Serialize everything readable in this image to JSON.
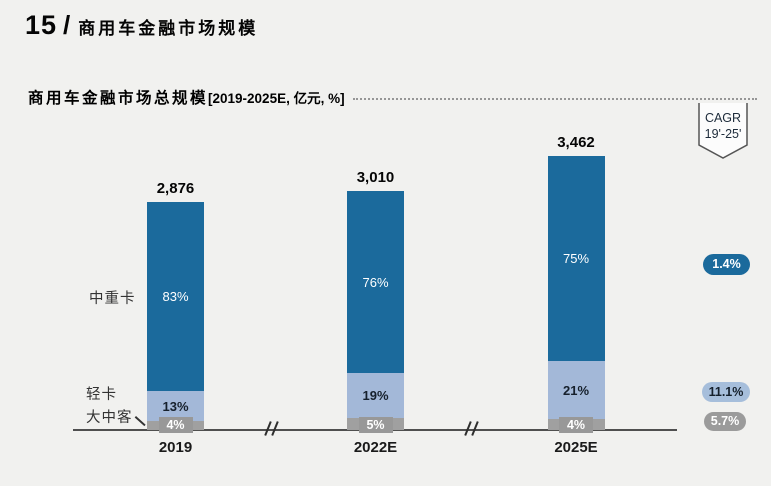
{
  "header": {
    "page_number": "15",
    "separator": "/",
    "title": "商用车金融市场规模"
  },
  "chart": {
    "subtitle_main": "商用车金融市场总规模",
    "subtitle_unit": "[2019-2025E, 亿元, %]",
    "cagr_line1": "CAGR",
    "cagr_line2": "19'-25'"
  },
  "chart_data": {
    "type": "bar",
    "stacked": true,
    "title": "商用车金融市场总规模[2019-2025E, 亿元, %]",
    "unit": "亿元",
    "categories": [
      "2019",
      "2022E",
      "2025E"
    ],
    "totals": [
      2876,
      3010,
      3462
    ],
    "total_labels": [
      "2,876",
      "3,010",
      "3,462"
    ],
    "series": [
      {
        "name": "中重卡",
        "color": "#1b6a9c",
        "label_color": "#ffffff",
        "shares": [
          0.83,
          0.76,
          0.75
        ],
        "share_labels": [
          "83%",
          "76%",
          "75%"
        ],
        "cagr": "1.4%",
        "cagr_pill_bg": "#1b6a9c",
        "cagr_pill_text": "#ffffff"
      },
      {
        "name": "轻卡",
        "color": "#a3b8d8",
        "label_color": "#16202c",
        "shares": [
          0.13,
          0.19,
          0.21
        ],
        "share_labels": [
          "13%",
          "19%",
          "21%"
        ],
        "cagr": "11.1%",
        "cagr_pill_bg": "#a6bedb",
        "cagr_pill_text": "#141f2b"
      },
      {
        "name": "大中客",
        "color": "#a0a0a0",
        "label_color": "#ffffff",
        "label_bg": "#989898",
        "shares": [
          0.04,
          0.05,
          0.04
        ],
        "share_labels": [
          "4%",
          "5%",
          "4%"
        ],
        "cagr": "5.7%",
        "cagr_pill_bg": "#9b9b9b",
        "cagr_pill_text": "#ffffff"
      }
    ],
    "axis_breaks": true,
    "cagr_header": "CAGR 19'-25'",
    "background_color": "#f1f1ef",
    "axis_color": "#4f4f4f"
  }
}
